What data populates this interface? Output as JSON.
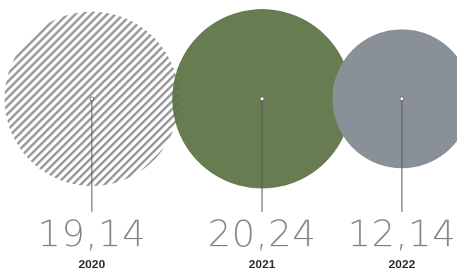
{
  "chart_data": {
    "type": "bubble",
    "categories": [
      "2020",
      "2021",
      "2022"
    ],
    "values": [
      19.14,
      20.24,
      12.14
    ],
    "value_labels": [
      "19,14",
      "20,24",
      "12,14"
    ],
    "title": "",
    "xlabel": "",
    "ylabel": "",
    "colors": {
      "hatch_line": "#9a9a9a",
      "bubble_2021": "#5a7142",
      "bubble_2022": "#8a9098",
      "connector": "#555555",
      "value_text": "#8a8a8a",
      "year_text": "#333333"
    }
  }
}
